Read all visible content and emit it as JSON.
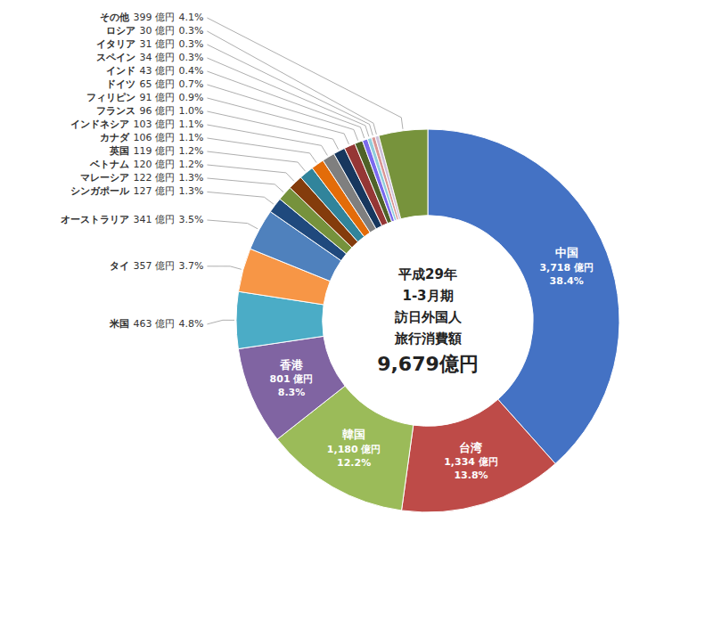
{
  "chart_data": {
    "type": "donut",
    "categories": [
      "中国",
      "台湾",
      "韓国",
      "香港",
      "米国",
      "タイ",
      "オーストラリア",
      "シンガポール",
      "マレーシア",
      "ベトナム",
      "英国",
      "カナダ",
      "インドネシア",
      "フランス",
      "フィリピン",
      "ドイツ",
      "インド",
      "スペイン",
      "イタリア",
      "ロシア",
      "その他"
    ],
    "values": [
      3718,
      1334,
      1180,
      801,
      463,
      357,
      341,
      127,
      122,
      120,
      119,
      106,
      103,
      96,
      91,
      65,
      43,
      34,
      31,
      30,
      399
    ],
    "value_labels": [
      "3,718 億円",
      "1,334 億円",
      "1,180 億円",
      "801 億円",
      "463 億円",
      "357 億円",
      "341 億円",
      "127 億円",
      "122 億円",
      "120 億円",
      "119 億円",
      "106 億円",
      "103 億円",
      "96 億円",
      "91 億円",
      "65 億円",
      "43 億円",
      "34 億円",
      "31 億円",
      "30 億円",
      "399 億円"
    ],
    "percents": [
      38.4,
      13.8,
      12.2,
      8.3,
      4.8,
      3.7,
      3.5,
      1.3,
      1.3,
      1.2,
      1.2,
      1.1,
      1.1,
      1.0,
      0.9,
      0.7,
      0.4,
      0.3,
      0.3,
      0.3,
      4.1
    ],
    "percent_labels": [
      "38.4%",
      "13.8%",
      "12.2%",
      "8.3%",
      "4.8%",
      "3.7%",
      "3.5%",
      "1.3%",
      "1.3%",
      "1.2%",
      "1.2%",
      "1.1%",
      "1.1%",
      "1.0%",
      "0.9%",
      "0.7%",
      "0.4%",
      "0.3%",
      "0.3%",
      "0.3%",
      "4.1%"
    ],
    "colors": [
      "#4472C4",
      "#BE4B48",
      "#9BBB59",
      "#8064A2",
      "#4BACC6",
      "#F79646",
      "#4F81BD",
      "#1F497D",
      "#76923C",
      "#843C0C",
      "#31849B",
      "#E36C09",
      "#7F7F7F",
      "#17375E",
      "#953735",
      "#4F6228",
      "#7B69EE",
      "#92CDDC",
      "#D99694",
      "#CCC0DA",
      "#77933C"
    ],
    "data_labels": true,
    "center_text": [
      "平成29年",
      "1-3月期",
      "訪日外国人",
      "旅行消費額",
      "9,679億円"
    ]
  }
}
